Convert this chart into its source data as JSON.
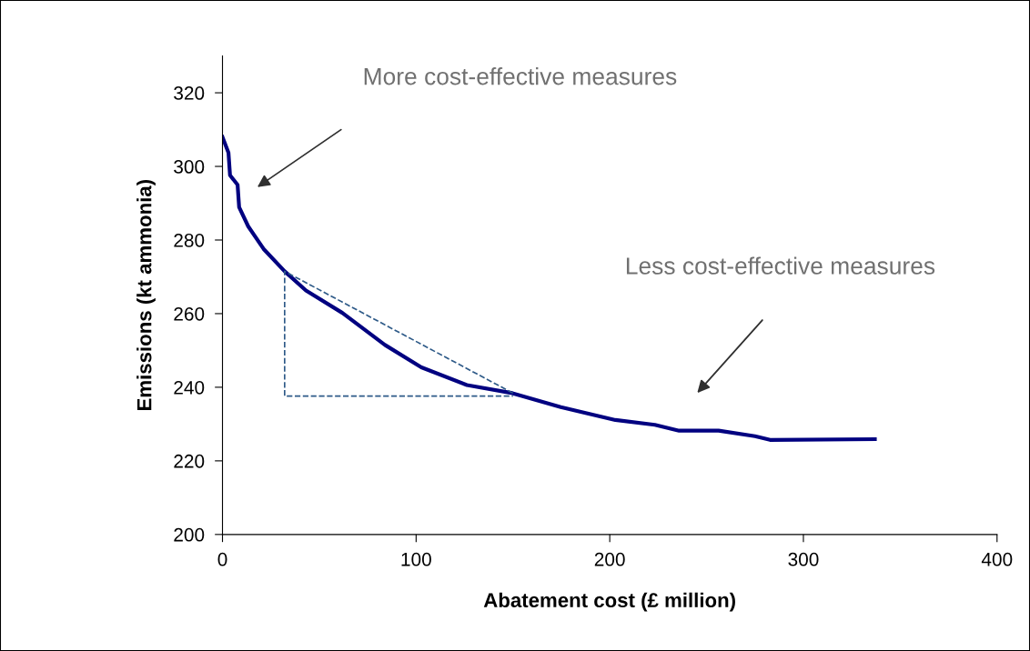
{
  "chart_data": {
    "type": "line",
    "xlabel": "Abatement cost (£ million)",
    "ylabel": "Emissions (kt ammonia)",
    "xlim": [
      0,
      400
    ],
    "xticks": [
      0,
      100,
      200,
      300,
      400
    ],
    "ylim": [
      200,
      330
    ],
    "yticks": [
      200,
      220,
      240,
      260,
      280,
      300,
      320
    ],
    "grid": false,
    "marker": "none",
    "series": [
      {
        "color": "#000080",
        "line_style": "solid",
        "x": [
          0,
          3.1,
          3.9,
          7.8,
          8.6,
          13.3,
          21.2,
          32.1,
          43.1,
          61.9,
          83.9,
          102.7,
          126.2,
          149.7,
          174.7,
          202.9,
          223.3,
          235.8,
          256.2,
          275,
          282.8,
          336.9
        ],
        "values": [
          308,
          303.7,
          297.6,
          295,
          288.9,
          283.7,
          277.6,
          271.5,
          266.3,
          260.2,
          251.5,
          245.4,
          240.6,
          238.4,
          234.6,
          231.1,
          229.8,
          228.2,
          228.2,
          226.7,
          225.7,
          225.9
        ]
      },
      {
        "color": "#2e5a88",
        "line_style": "dashed",
        "x": [
          150,
          32.1,
          32.1,
          150
        ],
        "values": [
          238.4,
          271.5,
          237.6,
          237.6
        ]
      }
    ],
    "annotations": [
      "More cost-effective measures",
      "Less cost-effective measures"
    ]
  }
}
